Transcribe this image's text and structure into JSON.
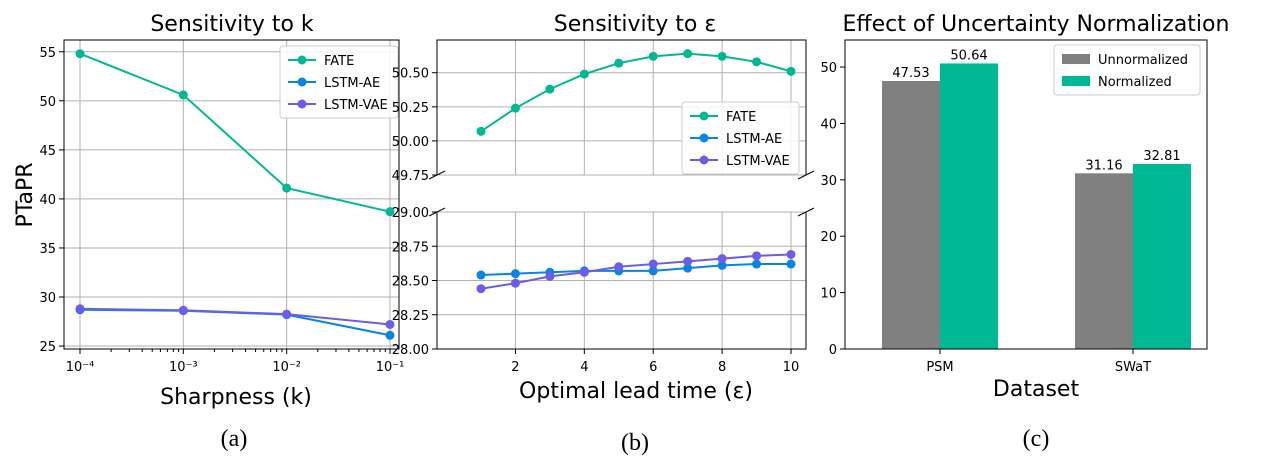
{
  "colors": {
    "FATE": "#00b894",
    "LSTM-AE": "#0984e3",
    "LSTM-VAE": "#6c5ce7",
    "Unnormalized": "#808080",
    "Normalized": "#00b894"
  },
  "chart_data": [
    {
      "type": "line",
      "title": "Sensitivity to k",
      "xlabel": "Sharpness (k)",
      "ylabel": "PTaPR",
      "caption": "(a)",
      "x": [
        0.0001,
        0.001,
        0.01,
        0.1
      ],
      "x_scale": "log",
      "x_tick_labels": [
        "10⁻⁴",
        "10⁻³",
        "10⁻²",
        "10⁻¹"
      ],
      "ylim": [
        24.7,
        56.2
      ],
      "y_ticks": [
        25,
        30,
        35,
        40,
        45,
        50,
        55
      ],
      "grid": true,
      "legend": "top-right",
      "series": [
        {
          "name": "FATE",
          "values": [
            54.8,
            50.6,
            41.1,
            38.7
          ]
        },
        {
          "name": "LSTM-AE",
          "values": [
            28.7,
            28.6,
            28.2,
            26.1
          ]
        },
        {
          "name": "LSTM-VAE",
          "values": [
            28.8,
            28.65,
            28.25,
            27.2
          ]
        }
      ]
    },
    {
      "type": "line",
      "title": "Sensitivity to ε",
      "xlabel": "Optimal lead time (ε)",
      "caption": "(b)",
      "x": [
        1,
        2,
        3,
        4,
        5,
        6,
        7,
        8,
        9,
        10
      ],
      "xlim": [
        0.7,
        10.45
      ],
      "x_ticks": [
        2,
        4,
        6,
        8,
        10
      ],
      "broken_y_axis": true,
      "ylim_top": [
        49.75,
        50.74
      ],
      "y_ticks_top": [
        "49.75",
        "50.00",
        "50.25",
        "50.50"
      ],
      "ylim_bottom": [
        28.0,
        29.0
      ],
      "y_ticks_bottom": [
        "28.00",
        "28.25",
        "28.50",
        "28.75",
        "29.00"
      ],
      "grid": true,
      "legend": "right",
      "series": [
        {
          "name": "FATE",
          "values": [
            50.07,
            50.24,
            50.38,
            50.49,
            50.57,
            50.62,
            50.64,
            50.62,
            50.58,
            50.51
          ]
        },
        {
          "name": "LSTM-AE",
          "values": [
            28.54,
            28.55,
            28.56,
            28.57,
            28.57,
            28.57,
            28.59,
            28.61,
            28.62,
            28.62
          ]
        },
        {
          "name": "LSTM-VAE",
          "values": [
            28.44,
            28.48,
            28.53,
            28.56,
            28.6,
            28.62,
            28.64,
            28.66,
            28.68,
            28.69
          ]
        }
      ]
    },
    {
      "type": "bar",
      "title": "Effect of Uncertainty Normalization",
      "xlabel": "Dataset",
      "caption": "(c)",
      "categories": [
        "PSM",
        "SWaT"
      ],
      "ylim": [
        0,
        54.8
      ],
      "y_ticks": [
        0,
        10,
        20,
        30,
        40,
        50
      ],
      "grid": false,
      "legend": "top-right",
      "series": [
        {
          "name": "Unnormalized",
          "values": [
            47.53,
            31.16
          ],
          "labels": [
            "47.53",
            "31.16"
          ]
        },
        {
          "name": "Normalized",
          "values": [
            50.64,
            32.81
          ],
          "labels": [
            "50.64",
            "32.81"
          ]
        }
      ]
    }
  ]
}
